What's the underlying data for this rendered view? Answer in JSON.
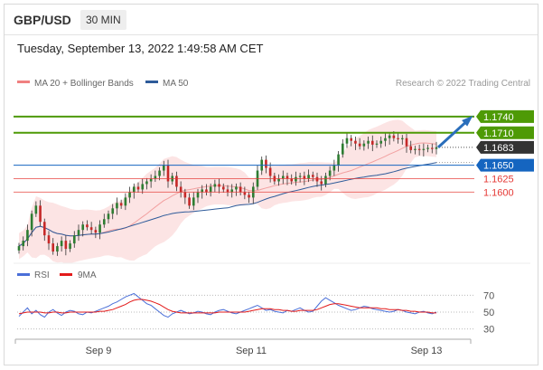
{
  "header": {
    "pair": "GBP/USD",
    "interval": "30 MIN"
  },
  "datetime": "Tuesday, September 13, 2022 1:49:58 AM CET",
  "legend": {
    "ma20_bb": {
      "label": "MA 20 + Bollinger Bands",
      "color": "#f08080"
    },
    "ma50": {
      "label": "MA 50",
      "color": "#2e5b9a"
    }
  },
  "copyright": "Research © 2022 Trading Central",
  "levels": [
    {
      "value": 1.174,
      "label": "1.1740",
      "kind": "resistance",
      "color": "#4e9a06"
    },
    {
      "value": 1.171,
      "label": "1.1710",
      "kind": "resistance",
      "color": "#4e9a06"
    },
    {
      "value": 1.1683,
      "label": "1.1683",
      "kind": "current",
      "color": "#333333"
    },
    {
      "value": 1.165,
      "label": "1.1650",
      "kind": "pivot",
      "color": "#1565c0"
    },
    {
      "value": 1.1625,
      "label": "1.1625",
      "kind": "support",
      "color": "#e53935"
    },
    {
      "value": 1.16,
      "label": "1.1600",
      "kind": "support",
      "color": "#e53935"
    }
  ],
  "x_axis": {
    "ticks": [
      "Sep 9",
      "Sep 11",
      "Sep 13"
    ]
  },
  "rsi_legend": {
    "rsi": {
      "label": "RSI",
      "color": "#4a6fd8"
    },
    "ma9": {
      "label": "9MA",
      "color": "#e31a1a"
    }
  },
  "rsi_axis": {
    "ticks": [
      "70",
      "50",
      "30"
    ]
  },
  "chart_data": [
    {
      "type": "candlestick",
      "title": "GBP/USD 30 MIN",
      "y_range": [
        1.1475,
        1.178
      ],
      "series": [
        {
          "name": "MA 20 + Bollinger Bands"
        },
        {
          "name": "MA 50"
        }
      ],
      "close": [
        1.15,
        1.151,
        1.153,
        1.156,
        1.1575,
        1.1545,
        1.152,
        1.1505,
        1.149,
        1.15,
        1.151,
        1.1495,
        1.1505,
        1.152,
        1.153,
        1.154,
        1.1535,
        1.153,
        1.1525,
        1.154,
        1.155,
        1.156,
        1.157,
        1.158,
        1.1575,
        1.159,
        1.16,
        1.161,
        1.1605,
        1.1615,
        1.162,
        1.1625,
        1.163,
        1.164,
        1.165,
        1.162,
        1.163,
        1.161,
        1.16,
        1.159,
        1.1575,
        1.159,
        1.16,
        1.1605,
        1.16,
        1.161,
        1.1615,
        1.161,
        1.1605,
        1.16,
        1.1605,
        1.161,
        1.16,
        1.1595,
        1.159,
        1.161,
        1.164,
        1.166,
        1.1645,
        1.163,
        1.162,
        1.1625,
        1.163,
        1.1625,
        1.162,
        1.1628,
        1.163,
        1.1625,
        1.1632,
        1.1628,
        1.162,
        1.1615,
        1.163,
        1.164,
        1.165,
        1.167,
        1.169,
        1.17,
        1.1695,
        1.169,
        1.1685,
        1.169,
        1.1695,
        1.1688,
        1.169,
        1.1695,
        1.17,
        1.1705,
        1.17,
        1.1698,
        1.17,
        1.1685,
        1.1678,
        1.168,
        1.1678,
        1.168,
        1.1682,
        1.168,
        1.1683
      ],
      "rsi": [
        45,
        50,
        55,
        48,
        52,
        47,
        44,
        50,
        53,
        49,
        46,
        50,
        52,
        51,
        48,
        47,
        50,
        49,
        51,
        53,
        55,
        57,
        60,
        62,
        65,
        68,
        70,
        72,
        68,
        64,
        60,
        58,
        54,
        50,
        46,
        44,
        48,
        50,
        52,
        50,
        48,
        49,
        51,
        50,
        48,
        47,
        50,
        52,
        53,
        51,
        49,
        48,
        50,
        52,
        54,
        56,
        58,
        55,
        52,
        53,
        51,
        50,
        49,
        52,
        51,
        53,
        55,
        52,
        50,
        51,
        57,
        63,
        67,
        64,
        61,
        58,
        56,
        54,
        52,
        53,
        55,
        57,
        56,
        54,
        53,
        52,
        51,
        50,
        51,
        53,
        52,
        50,
        49,
        48,
        50,
        51,
        49,
        48,
        50
      ],
      "rsi_ma9": [
        48,
        49,
        50,
        50,
        50,
        50,
        49,
        49,
        50,
        50,
        49,
        49,
        50,
        50,
        50,
        50,
        50,
        50,
        50,
        51,
        51,
        52,
        53,
        55,
        57,
        59,
        62,
        64,
        65,
        65,
        64,
        63,
        61,
        59,
        56,
        53,
        51,
        50,
        49,
        49,
        49,
        49,
        49,
        49,
        49,
        49,
        49,
        50,
        50,
        50,
        50,
        50,
        50,
        50,
        51,
        52,
        53,
        54,
        54,
        54,
        53,
        53,
        52,
        52,
        51,
        51,
        52,
        52,
        52,
        52,
        53,
        55,
        57,
        59,
        60,
        60,
        59,
        58,
        57,
        56,
        55,
        55,
        55,
        55,
        55,
        54,
        54,
        53,
        53,
        53,
        52,
        52,
        51,
        51,
        50,
        50,
        50,
        49,
        49
      ],
      "rsi_range": [
        20,
        80
      ]
    }
  ]
}
